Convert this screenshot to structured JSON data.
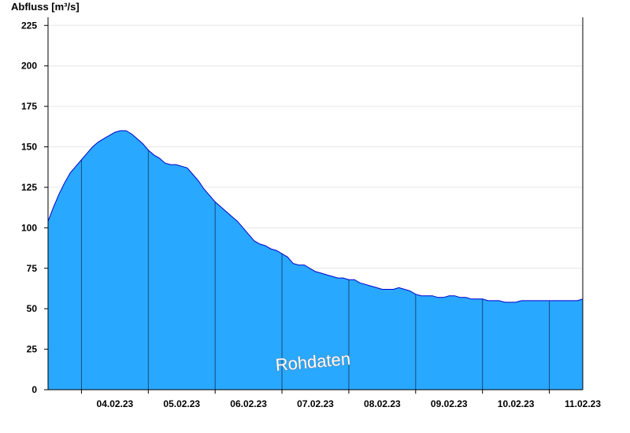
{
  "chart_data": {
    "type": "area",
    "ylabel": "Abfluss [m³/s]",
    "ylim": [
      0,
      230
    ],
    "yticks": [
      0,
      25,
      50,
      75,
      100,
      125,
      150,
      175,
      200,
      225
    ],
    "xlim": [
      "2023-02-03T12:00",
      "2023-02-11T12:00"
    ],
    "xticks": [
      "04.02.23",
      "05.02.23",
      "06.02.23",
      "07.02.23",
      "08.02.23",
      "09.02.23",
      "10.02.23",
      "11.02.23"
    ],
    "day_boundaries": [
      "2023-02-04T00:00",
      "2023-02-05T00:00",
      "2023-02-06T00:00",
      "2023-02-07T00:00",
      "2023-02-08T00:00",
      "2023-02-09T00:00",
      "2023-02-10T00:00",
      "2023-02-11T00:00"
    ],
    "grid": true,
    "watermark": "Rohdaten",
    "colors": {
      "fill": "#29a8ff",
      "line": "#0000cc",
      "grid": "#e6e6e6"
    },
    "series": [
      {
        "x": [
          "2023-02-03T12:00",
          "2023-02-03T14:00",
          "2023-02-03T16:00",
          "2023-02-03T18:00",
          "2023-02-03T20:00",
          "2023-02-03T22:00",
          "2023-02-04T00:00",
          "2023-02-04T02:00",
          "2023-02-04T04:00",
          "2023-02-04T06:00",
          "2023-02-04T08:00",
          "2023-02-04T10:00",
          "2023-02-04T12:00",
          "2023-02-04T14:00",
          "2023-02-04T16:00",
          "2023-02-04T18:00",
          "2023-02-04T20:00",
          "2023-02-04T22:00",
          "2023-02-05T00:00",
          "2023-02-05T02:00",
          "2023-02-05T04:00",
          "2023-02-05T06:00",
          "2023-02-05T08:00",
          "2023-02-05T10:00",
          "2023-02-05T12:00",
          "2023-02-05T14:00",
          "2023-02-05T16:00",
          "2023-02-05T18:00",
          "2023-02-05T20:00",
          "2023-02-05T22:00",
          "2023-02-06T00:00",
          "2023-02-06T02:00",
          "2023-02-06T04:00",
          "2023-02-06T06:00",
          "2023-02-06T08:00",
          "2023-02-06T10:00",
          "2023-02-06T12:00",
          "2023-02-06T14:00",
          "2023-02-06T16:00",
          "2023-02-06T18:00",
          "2023-02-06T20:00",
          "2023-02-06T22:00",
          "2023-02-07T00:00",
          "2023-02-07T02:00",
          "2023-02-07T04:00",
          "2023-02-07T06:00",
          "2023-02-07T08:00",
          "2023-02-07T10:00",
          "2023-02-07T12:00",
          "2023-02-07T14:00",
          "2023-02-07T16:00",
          "2023-02-07T18:00",
          "2023-02-07T20:00",
          "2023-02-07T22:00",
          "2023-02-08T00:00",
          "2023-02-08T02:00",
          "2023-02-08T04:00",
          "2023-02-08T06:00",
          "2023-02-08T08:00",
          "2023-02-08T10:00",
          "2023-02-08T12:00",
          "2023-02-08T14:00",
          "2023-02-08T16:00",
          "2023-02-08T18:00",
          "2023-02-08T20:00",
          "2023-02-08T22:00",
          "2023-02-09T00:00",
          "2023-02-09T02:00",
          "2023-02-09T04:00",
          "2023-02-09T06:00",
          "2023-02-09T08:00",
          "2023-02-09T10:00",
          "2023-02-09T12:00",
          "2023-02-09T14:00",
          "2023-02-09T16:00",
          "2023-02-09T18:00",
          "2023-02-09T20:00",
          "2023-02-09T22:00",
          "2023-02-10T00:00",
          "2023-02-10T02:00",
          "2023-02-10T04:00",
          "2023-02-10T06:00",
          "2023-02-10T08:00",
          "2023-02-10T10:00",
          "2023-02-10T12:00",
          "2023-02-10T14:00",
          "2023-02-10T16:00",
          "2023-02-10T18:00",
          "2023-02-10T20:00",
          "2023-02-10T22:00",
          "2023-02-11T00:00",
          "2023-02-11T02:00",
          "2023-02-11T04:00",
          "2023-02-11T06:00",
          "2023-02-11T08:00",
          "2023-02-11T10:00",
          "2023-02-11T12:00"
        ],
        "values": [
          104,
          113,
          121,
          128,
          134,
          138,
          142,
          146,
          150,
          153,
          155,
          157,
          159,
          160,
          160,
          158,
          155,
          152,
          148,
          145,
          143,
          140,
          139,
          139,
          138,
          137,
          133,
          129,
          124,
          120,
          116,
          113,
          110,
          107,
          104,
          100,
          96,
          92,
          90,
          89,
          87,
          86,
          84,
          82,
          78,
          77,
          77,
          75,
          73,
          72,
          71,
          70,
          69,
          69,
          68,
          68,
          66,
          65,
          64,
          63,
          62,
          62,
          62,
          63,
          62,
          61,
          59,
          58,
          58,
          58,
          57,
          57,
          58,
          58,
          57,
          57,
          56,
          56,
          56,
          55,
          55,
          55,
          54,
          54,
          54,
          55,
          55,
          55,
          55,
          55,
          55,
          55,
          55,
          55,
          55,
          55,
          56
        ]
      }
    ]
  }
}
